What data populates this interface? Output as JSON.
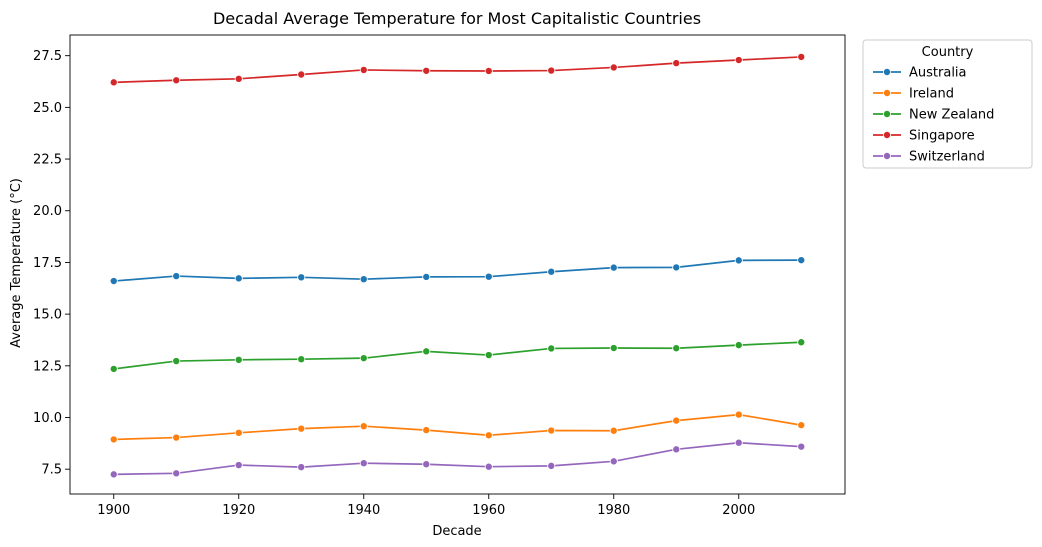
{
  "chart_data": {
    "type": "line",
    "title": "Decadal Average Temperature for Most Capitalistic Countries",
    "xlabel": "Decade",
    "ylabel": "Average Temperature (°C)",
    "x": [
      1900,
      1910,
      1920,
      1930,
      1940,
      1950,
      1960,
      1970,
      1980,
      1990,
      2000,
      2010
    ],
    "xlim": [
      1893,
      2017
    ],
    "ylim": [
      6.3,
      28.5
    ],
    "x_ticks": [
      1900,
      1920,
      1940,
      1960,
      1980,
      2000
    ],
    "y_ticks": [
      7.5,
      10.0,
      12.5,
      15.0,
      17.5,
      20.0,
      22.5,
      25.0,
      27.5
    ],
    "grid": false,
    "legend": {
      "title": "Country",
      "placement": "outside-top-right"
    },
    "series": [
      {
        "name": "Australia",
        "color": "#1f77b4",
        "values": [
          16.6,
          16.84,
          16.73,
          16.78,
          16.69,
          16.8,
          16.81,
          17.05,
          17.25,
          17.26,
          17.6,
          17.61
        ]
      },
      {
        "name": "Ireland",
        "color": "#ff7f0e",
        "values": [
          8.94,
          9.03,
          9.26,
          9.46,
          9.58,
          9.39,
          9.14,
          9.37,
          9.36,
          9.85,
          10.14,
          9.63
        ]
      },
      {
        "name": "New Zealand",
        "color": "#2ca02c",
        "values": [
          12.35,
          12.73,
          12.79,
          12.82,
          12.87,
          13.2,
          13.02,
          13.34,
          13.36,
          13.35,
          13.5,
          13.64
        ]
      },
      {
        "name": "Singapore",
        "color": "#d62728",
        "values": [
          26.21,
          26.31,
          26.38,
          26.59,
          26.81,
          26.77,
          26.76,
          26.78,
          26.93,
          27.14,
          27.29,
          27.44
        ]
      },
      {
        "name": "Switzerland",
        "color": "#9467bd",
        "values": [
          7.25,
          7.3,
          7.7,
          7.6,
          7.79,
          7.74,
          7.62,
          7.66,
          7.88,
          8.46,
          8.78,
          8.59
        ]
      }
    ]
  }
}
